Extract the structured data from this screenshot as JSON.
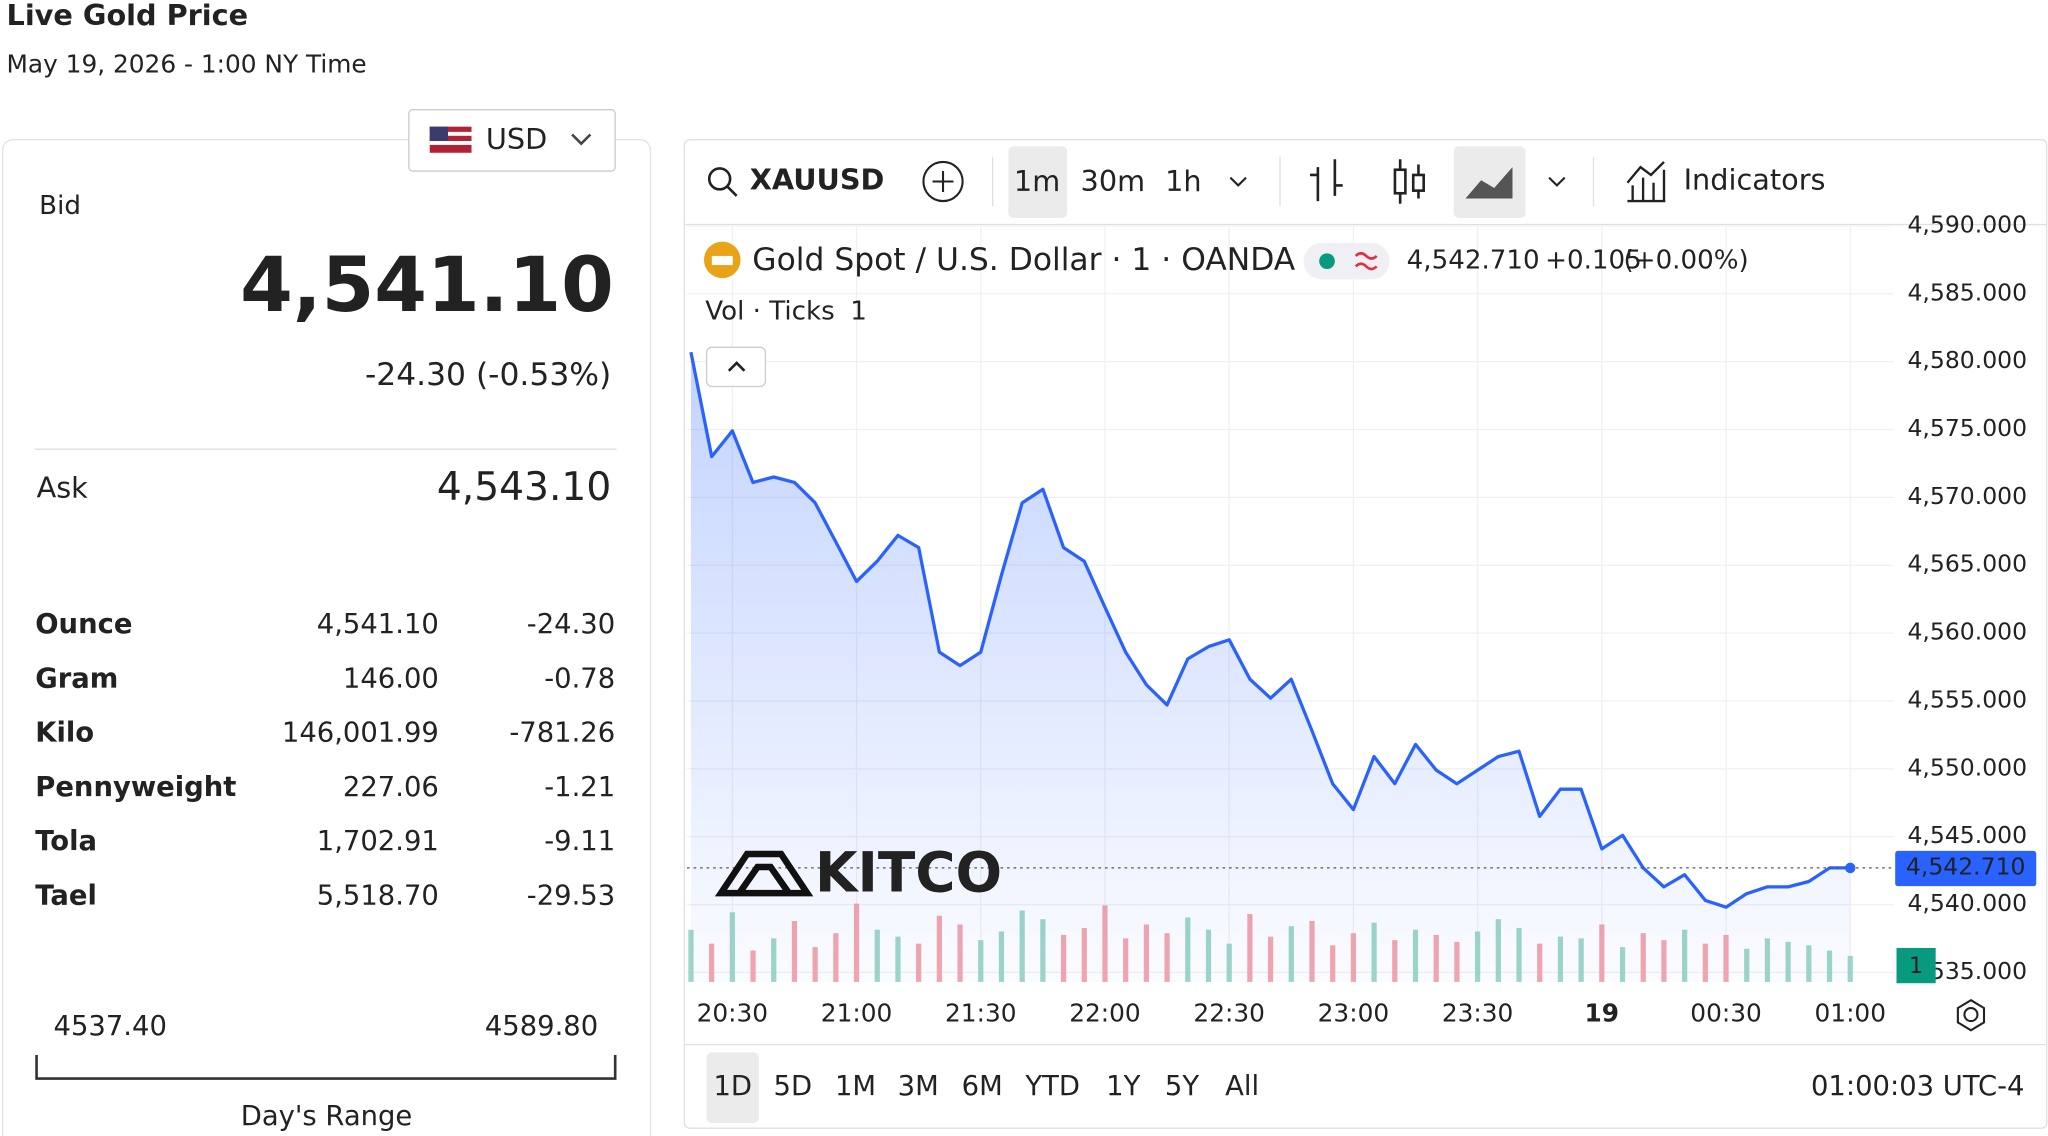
{
  "header": {
    "title": "Live Gold Price",
    "subtitle": "May 19, 2026 - 1:00 NY Time",
    "currency": "USD"
  },
  "quote_panel": {
    "bid_label": "Bid",
    "bid": "4,541.10",
    "change": "-24.30 (-0.53%)",
    "ask_label": "Ask",
    "ask": "4,543.10"
  },
  "table": {
    "rows": [
      [
        "Ounce",
        "4,541.10",
        "-24.30"
      ],
      [
        "Gram",
        "146.00",
        "-0.78"
      ],
      [
        "Kilo",
        "146,001.99",
        "-781.26"
      ],
      [
        "Pennyweight",
        "227.06",
        "-1.21"
      ],
      [
        "Tola",
        "1,702.91",
        "-9.11"
      ],
      [
        "Tael",
        "5,518.70",
        "-29.53"
      ]
    ]
  },
  "range": {
    "low": "4537.40",
    "high": "4589.80",
    "label": "Day's Range"
  },
  "toolbar": {
    "symbol": "XAUUSD",
    "intervals": [
      "1m",
      "30m",
      "1h"
    ],
    "indicators": "Indicators"
  },
  "legend": {
    "title": "Gold Spot / U.S. Dollar · 1 · OANDA",
    "price": "4,542.710",
    "change": "+0.105",
    "percent": "(+0.00%)",
    "volume_label": "Vol · Ticks",
    "volume_value": "1"
  },
  "watermark": "KITCO",
  "bottom_bar": {
    "ranges": [
      "1D",
      "5D",
      "1M",
      "3M",
      "6M",
      "YTD",
      "1Y",
      "5Y",
      "All"
    ],
    "time": "01:00:03 UTC-4"
  },
  "chart_data": {
    "type": "line",
    "x": [
      "20:20",
      "20:25",
      "20:30",
      "20:35",
      "20:40",
      "20:45",
      "20:50",
      "20:55",
      "21:00",
      "21:05",
      "21:10",
      "21:15",
      "21:20",
      "21:25",
      "21:30",
      "21:35",
      "21:40",
      "21:45",
      "21:50",
      "21:55",
      "22:00",
      "22:05",
      "22:10",
      "22:15",
      "22:20",
      "22:25",
      "22:30",
      "22:35",
      "22:40",
      "22:45",
      "22:50",
      "22:55",
      "23:00",
      "23:05",
      "23:10",
      "23:15",
      "23:20",
      "23:25",
      "23:30",
      "23:35",
      "23:40",
      "23:45",
      "23:50",
      "23:55",
      "00:00",
      "00:05",
      "00:10",
      "00:15",
      "00:20",
      "00:25",
      "00:30",
      "00:35",
      "00:40",
      "00:45",
      "00:50",
      "00:55",
      "01:00"
    ],
    "series": [
      {
        "name": "Gold Spot / U.S. Dollar",
        "color": "#2962ff",
        "values": [
          4580.7,
          4573.0,
          4574.9,
          4571.1,
          4571.5,
          4571.1,
          4569.6,
          4566.7,
          4563.8,
          4565.3,
          4567.2,
          4566.3,
          4558.6,
          4557.6,
          4558.6,
          4564.3,
          4569.6,
          4570.6,
          4566.3,
          4565.3,
          4561.9,
          4558.6,
          4556.2,
          4554.7,
          4558.1,
          4559.0,
          4559.5,
          4556.6,
          4555.2,
          4556.6,
          4552.8,
          4548.9,
          4547.0,
          4550.9,
          4548.9,
          4551.8,
          4549.9,
          4548.9,
          4549.9,
          4550.9,
          4551.3,
          4546.5,
          4548.5,
          4548.5,
          4544.1,
          4545.1,
          4542.7,
          4541.3,
          4542.2,
          4540.3,
          4539.8,
          4540.8,
          4541.3,
          4541.3,
          4541.7,
          4542.7,
          4542.7
        ]
      }
    ],
    "volume": [
      30,
      22,
      40,
      18,
      25,
      35,
      20,
      28,
      45,
      30,
      26,
      22,
      38,
      33,
      24,
      29,
      41,
      36,
      27,
      31,
      44,
      25,
      33,
      28,
      37,
      30,
      22,
      39,
      26,
      32,
      35,
      21,
      28,
      34,
      24,
      30,
      27,
      23,
      29,
      36,
      31,
      22,
      26,
      25,
      33,
      20,
      28,
      24,
      30,
      22,
      27,
      19,
      25,
      23,
      21,
      18,
      15
    ],
    "ylim": [
      4534.3,
      4590
    ],
    "yticks": [
      {
        "value": 4535,
        "label": "4,535.000"
      },
      {
        "value": 4540,
        "label": "4,540.000"
      },
      {
        "value": 4545,
        "label": "4,545.000"
      },
      {
        "value": 4550,
        "label": "4,550.000"
      },
      {
        "value": 4555,
        "label": "4,555.000"
      },
      {
        "value": 4560,
        "label": "4,560.000"
      },
      {
        "value": 4565,
        "label": "4,565.000"
      },
      {
        "value": 4570,
        "label": "4,570.000"
      },
      {
        "value": 4575,
        "label": "4,575.000"
      },
      {
        "value": 4580,
        "label": "4,580.000"
      },
      {
        "value": 4585,
        "label": "4,585.000"
      },
      {
        "value": 4590,
        "label": "4,590.000"
      }
    ],
    "xticks": [
      "20:30",
      "21:00",
      "21:30",
      "22:00",
      "22:30",
      "23:00",
      "23:30",
      {
        "value": "00:00",
        "label": "19"
      },
      "00:30",
      "01:00"
    ],
    "grid": true
  }
}
